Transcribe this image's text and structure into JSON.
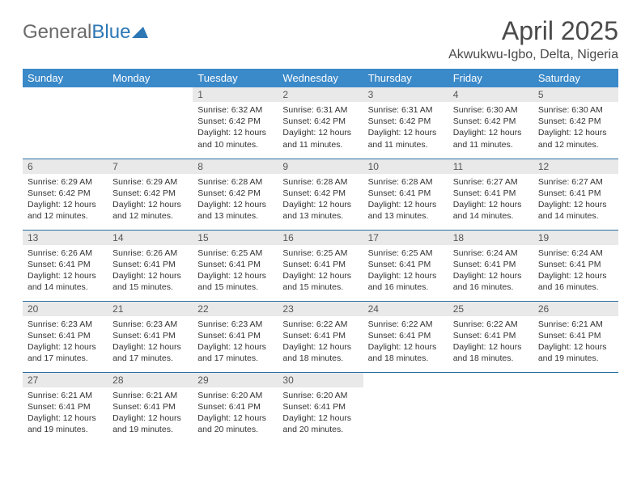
{
  "brand": {
    "part1": "General",
    "part2": "Blue"
  },
  "title": "April 2025",
  "location": "Akwukwu-Igbo, Delta, Nigeria",
  "colors": {
    "header_bg": "#3a89c9",
    "header_text": "#ffffff",
    "daynum_bg": "#e9e9e9",
    "border": "#2a6fa3",
    "text": "#333333",
    "logo_gray": "#6a6a6a",
    "logo_blue": "#2d77b5"
  },
  "weekdays": [
    "Sunday",
    "Monday",
    "Tuesday",
    "Wednesday",
    "Thursday",
    "Friday",
    "Saturday"
  ],
  "weeks": [
    [
      null,
      null,
      {
        "n": "1",
        "sr": "6:32 AM",
        "ss": "6:42 PM",
        "dl": "12 hours and 10 minutes."
      },
      {
        "n": "2",
        "sr": "6:31 AM",
        "ss": "6:42 PM",
        "dl": "12 hours and 11 minutes."
      },
      {
        "n": "3",
        "sr": "6:31 AM",
        "ss": "6:42 PM",
        "dl": "12 hours and 11 minutes."
      },
      {
        "n": "4",
        "sr": "6:30 AM",
        "ss": "6:42 PM",
        "dl": "12 hours and 11 minutes."
      },
      {
        "n": "5",
        "sr": "6:30 AM",
        "ss": "6:42 PM",
        "dl": "12 hours and 12 minutes."
      }
    ],
    [
      {
        "n": "6",
        "sr": "6:29 AM",
        "ss": "6:42 PM",
        "dl": "12 hours and 12 minutes."
      },
      {
        "n": "7",
        "sr": "6:29 AM",
        "ss": "6:42 PM",
        "dl": "12 hours and 12 minutes."
      },
      {
        "n": "8",
        "sr": "6:28 AM",
        "ss": "6:42 PM",
        "dl": "12 hours and 13 minutes."
      },
      {
        "n": "9",
        "sr": "6:28 AM",
        "ss": "6:42 PM",
        "dl": "12 hours and 13 minutes."
      },
      {
        "n": "10",
        "sr": "6:28 AM",
        "ss": "6:41 PM",
        "dl": "12 hours and 13 minutes."
      },
      {
        "n": "11",
        "sr": "6:27 AM",
        "ss": "6:41 PM",
        "dl": "12 hours and 14 minutes."
      },
      {
        "n": "12",
        "sr": "6:27 AM",
        "ss": "6:41 PM",
        "dl": "12 hours and 14 minutes."
      }
    ],
    [
      {
        "n": "13",
        "sr": "6:26 AM",
        "ss": "6:41 PM",
        "dl": "12 hours and 14 minutes."
      },
      {
        "n": "14",
        "sr": "6:26 AM",
        "ss": "6:41 PM",
        "dl": "12 hours and 15 minutes."
      },
      {
        "n": "15",
        "sr": "6:25 AM",
        "ss": "6:41 PM",
        "dl": "12 hours and 15 minutes."
      },
      {
        "n": "16",
        "sr": "6:25 AM",
        "ss": "6:41 PM",
        "dl": "12 hours and 15 minutes."
      },
      {
        "n": "17",
        "sr": "6:25 AM",
        "ss": "6:41 PM",
        "dl": "12 hours and 16 minutes."
      },
      {
        "n": "18",
        "sr": "6:24 AM",
        "ss": "6:41 PM",
        "dl": "12 hours and 16 minutes."
      },
      {
        "n": "19",
        "sr": "6:24 AM",
        "ss": "6:41 PM",
        "dl": "12 hours and 16 minutes."
      }
    ],
    [
      {
        "n": "20",
        "sr": "6:23 AM",
        "ss": "6:41 PM",
        "dl": "12 hours and 17 minutes."
      },
      {
        "n": "21",
        "sr": "6:23 AM",
        "ss": "6:41 PM",
        "dl": "12 hours and 17 minutes."
      },
      {
        "n": "22",
        "sr": "6:23 AM",
        "ss": "6:41 PM",
        "dl": "12 hours and 17 minutes."
      },
      {
        "n": "23",
        "sr": "6:22 AM",
        "ss": "6:41 PM",
        "dl": "12 hours and 18 minutes."
      },
      {
        "n": "24",
        "sr": "6:22 AM",
        "ss": "6:41 PM",
        "dl": "12 hours and 18 minutes."
      },
      {
        "n": "25",
        "sr": "6:22 AM",
        "ss": "6:41 PM",
        "dl": "12 hours and 18 minutes."
      },
      {
        "n": "26",
        "sr": "6:21 AM",
        "ss": "6:41 PM",
        "dl": "12 hours and 19 minutes."
      }
    ],
    [
      {
        "n": "27",
        "sr": "6:21 AM",
        "ss": "6:41 PM",
        "dl": "12 hours and 19 minutes."
      },
      {
        "n": "28",
        "sr": "6:21 AM",
        "ss": "6:41 PM",
        "dl": "12 hours and 19 minutes."
      },
      {
        "n": "29",
        "sr": "6:20 AM",
        "ss": "6:41 PM",
        "dl": "12 hours and 20 minutes."
      },
      {
        "n": "30",
        "sr": "6:20 AM",
        "ss": "6:41 PM",
        "dl": "12 hours and 20 minutes."
      },
      null,
      null,
      null
    ]
  ],
  "labels": {
    "sunrise": "Sunrise:",
    "sunset": "Sunset:",
    "daylight": "Daylight:"
  }
}
